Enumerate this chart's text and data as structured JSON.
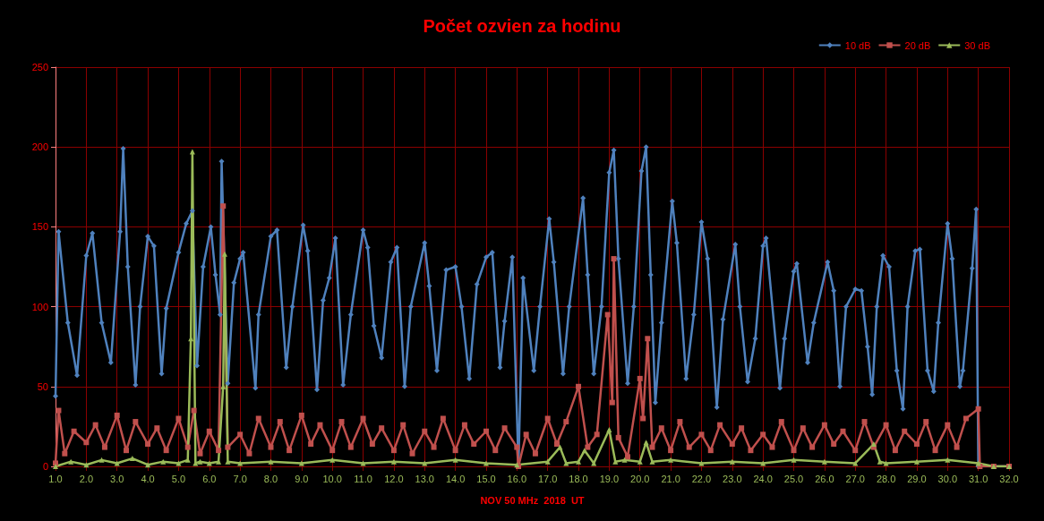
{
  "chart_data": {
    "type": "line",
    "title": "Počet ozvien za hodinu",
    "xlabel": "NOV 50 MHz  2018  UT",
    "xlim": [
      1,
      32
    ],
    "xticks": [
      {
        "value": 1,
        "label": "1.0"
      },
      {
        "value": 2,
        "label": "2.0"
      },
      {
        "value": 3,
        "label": "3.0"
      },
      {
        "value": 4,
        "label": "4.0"
      },
      {
        "value": 5,
        "label": "5.0"
      },
      {
        "value": 6,
        "label": "6.0"
      },
      {
        "value": 7,
        "label": "7.0"
      },
      {
        "value": 8,
        "label": "8.0"
      },
      {
        "value": 9,
        "label": "9.0"
      },
      {
        "value": 10,
        "label": "10.0"
      },
      {
        "value": 11,
        "label": "11.0"
      },
      {
        "value": 12,
        "label": "12.0"
      },
      {
        "value": 13,
        "label": "13.0"
      },
      {
        "value": 14,
        "label": "14.0"
      },
      {
        "value": 15,
        "label": "15.0"
      },
      {
        "value": 16,
        "label": "16.0"
      },
      {
        "value": 17,
        "label": "17.0"
      },
      {
        "value": 18,
        "label": "18.0"
      },
      {
        "value": 19,
        "label": "19.0"
      },
      {
        "value": 20,
        "label": "20.0"
      },
      {
        "value": 21,
        "label": "21.0"
      },
      {
        "value": 22,
        "label": "22.0"
      },
      {
        "value": 23,
        "label": "23.0"
      },
      {
        "value": 24,
        "label": "24.0"
      },
      {
        "value": 25,
        "label": "25.0"
      },
      {
        "value": 26,
        "label": "26.0"
      },
      {
        "value": 27,
        "label": "27.0"
      },
      {
        "value": 28,
        "label": "28.0"
      },
      {
        "value": 29,
        "label": "29.0"
      },
      {
        "value": 30,
        "label": "30.0"
      },
      {
        "value": 31,
        "label": "31.0"
      },
      {
        "value": 32,
        "label": "32.0"
      }
    ],
    "ylim": [
      0,
      250
    ],
    "yticks": [
      0,
      50,
      100,
      150,
      200,
      250
    ],
    "grid": true,
    "legend": "top right",
    "line_style": "solid",
    "series": [
      {
        "name": "10 dB",
        "color": "#4f81bd",
        "marker": "diamond",
        "x": [
          1.0,
          1.1,
          1.4,
          1.7,
          2.0,
          2.2,
          2.5,
          2.8,
          3.1,
          3.2,
          3.35,
          3.6,
          3.75,
          4.0,
          4.2,
          4.45,
          4.6,
          5.0,
          5.25,
          5.45,
          5.6,
          5.8,
          6.05,
          6.2,
          6.35,
          6.4,
          6.6,
          6.8,
          7.0,
          7.1,
          7.5,
          7.6,
          8.0,
          8.2,
          8.5,
          8.7,
          9.05,
          9.2,
          9.5,
          9.7,
          9.9,
          10.1,
          10.35,
          10.6,
          11.0,
          11.15,
          11.35,
          11.6,
          11.9,
          12.1,
          12.35,
          12.55,
          13.0,
          13.15,
          13.4,
          13.7,
          14.0,
          14.2,
          14.45,
          14.7,
          15.0,
          15.2,
          15.45,
          15.6,
          15.85,
          16.05,
          16.2,
          16.55,
          16.75,
          17.05,
          17.2,
          17.5,
          17.7,
          18.15,
          18.3,
          18.5,
          18.75,
          19.0,
          19.15,
          19.3,
          19.6,
          19.8,
          20.05,
          20.2,
          20.35,
          20.5,
          20.7,
          21.05,
          21.2,
          21.5,
          21.75,
          22.0,
          22.2,
          22.5,
          22.7,
          23.1,
          23.25,
          23.5,
          23.75,
          24.0,
          24.1,
          24.55,
          24.7,
          25.0,
          25.1,
          25.45,
          25.65,
          26.1,
          26.3,
          26.5,
          26.7,
          27.0,
          27.2,
          27.4,
          27.55,
          27.7,
          27.9,
          28.1,
          28.35,
          28.55,
          28.7,
          28.95,
          29.1,
          29.35,
          29.55,
          29.7,
          30.0,
          30.15,
          30.4,
          30.5,
          30.8,
          30.93,
          31.0,
          31.5,
          32.0
        ],
        "values": [
          44,
          147,
          90,
          57,
          132,
          146,
          90,
          65,
          147,
          199,
          125,
          51,
          100,
          144,
          138,
          58,
          99,
          134,
          152,
          160,
          63,
          125,
          150,
          120,
          95,
          191,
          52,
          115,
          130,
          134,
          49,
          95,
          144,
          148,
          62,
          100,
          151,
          135,
          48,
          104,
          118,
          143,
          51,
          95,
          148,
          137,
          88,
          68,
          128,
          137,
          50,
          100,
          140,
          113,
          60,
          123,
          125,
          100,
          55,
          114,
          131,
          134,
          62,
          91,
          131,
          0,
          118,
          60,
          100,
          155,
          128,
          58,
          100,
          168,
          120,
          58,
          100,
          184,
          198,
          130,
          52,
          100,
          185,
          200,
          120,
          40,
          90,
          166,
          140,
          55,
          95,
          153,
          130,
          37,
          92,
          139,
          100,
          53,
          80,
          138,
          143,
          49,
          80,
          122,
          127,
          65,
          90,
          128,
          110,
          50,
          100,
          111,
          110,
          75,
          45,
          100,
          132,
          125,
          60,
          36,
          100,
          135,
          136,
          60,
          47,
          90,
          152,
          130,
          50,
          60,
          124,
          161,
          0,
          0,
          0
        ]
      },
      {
        "name": "20 dB",
        "color": "#c0504d",
        "marker": "square",
        "x": [
          1.0,
          1.1,
          1.3,
          1.6,
          2.0,
          2.3,
          2.6,
          3.0,
          3.3,
          3.6,
          4.0,
          4.3,
          4.6,
          5.0,
          5.3,
          5.5,
          5.7,
          6.0,
          6.3,
          6.45,
          6.6,
          7.0,
          7.3,
          7.6,
          8.0,
          8.3,
          8.6,
          9.0,
          9.3,
          9.6,
          10.0,
          10.3,
          10.6,
          11.0,
          11.3,
          11.6,
          12.0,
          12.3,
          12.6,
          13.0,
          13.3,
          13.6,
          14.0,
          14.3,
          14.6,
          15.0,
          15.3,
          15.6,
          16.0,
          16.05,
          16.3,
          16.6,
          17.0,
          17.3,
          17.6,
          18.0,
          18.3,
          18.6,
          18.95,
          19.1,
          19.15,
          19.3,
          19.6,
          20.0,
          20.1,
          20.25,
          20.4,
          20.7,
          21.0,
          21.3,
          21.6,
          22.0,
          22.3,
          22.6,
          23.0,
          23.3,
          23.6,
          24.0,
          24.3,
          24.6,
          25.0,
          25.3,
          25.6,
          26.0,
          26.3,
          26.6,
          27.0,
          27.3,
          27.6,
          28.0,
          28.3,
          28.6,
          29.0,
          29.3,
          29.6,
          30.0,
          30.3,
          30.6,
          31.0,
          31.05,
          31.5,
          32.0
        ],
        "values": [
          2,
          35,
          8,
          22,
          15,
          26,
          12,
          32,
          10,
          28,
          14,
          24,
          10,
          30,
          12,
          35,
          8,
          22,
          10,
          163,
          12,
          20,
          8,
          30,
          12,
          28,
          10,
          32,
          14,
          26,
          10,
          28,
          12,
          30,
          14,
          24,
          10,
          26,
          8,
          22,
          12,
          30,
          10,
          26,
          14,
          22,
          10,
          24,
          12,
          0,
          20,
          8,
          30,
          14,
          28,
          50,
          12,
          20,
          95,
          40,
          130,
          18,
          6,
          55,
          30,
          80,
          12,
          24,
          10,
          28,
          12,
          20,
          10,
          26,
          14,
          24,
          10,
          20,
          12,
          28,
          10,
          24,
          12,
          26,
          14,
          22,
          10,
          28,
          12,
          26,
          10,
          22,
          14,
          28,
          10,
          26,
          12,
          30,
          36,
          0,
          0,
          0
        ]
      },
      {
        "name": "30 dB",
        "color": "#9bbb59",
        "marker": "triangle",
        "x": [
          1.0,
          1.5,
          2.0,
          2.5,
          3.0,
          3.5,
          4.0,
          4.5,
          5.0,
          5.3,
          5.4,
          5.45,
          5.55,
          5.7,
          6.0,
          6.3,
          6.45,
          6.5,
          6.6,
          7.0,
          8.0,
          9.0,
          10.0,
          11.0,
          12.0,
          13.0,
          14.0,
          15.0,
          16.0,
          17.0,
          17.4,
          17.6,
          18.0,
          18.2,
          18.5,
          19.0,
          19.2,
          19.5,
          20.0,
          20.2,
          20.4,
          21.0,
          22.0,
          23.0,
          24.0,
          25.0,
          26.0,
          27.0,
          27.6,
          27.8,
          28.0,
          29.0,
          30.0,
          31.0,
          31.5,
          32.0
        ],
        "values": [
          0,
          3,
          1,
          4,
          2,
          5,
          1,
          3,
          2,
          4,
          80,
          197,
          2,
          3,
          2,
          3,
          50,
          133,
          3,
          2,
          3,
          2,
          4,
          2,
          3,
          2,
          4,
          2,
          1,
          3,
          12,
          2,
          3,
          10,
          2,
          23,
          3,
          4,
          3,
          15,
          3,
          4,
          2,
          3,
          2,
          4,
          3,
          2,
          14,
          3,
          2,
          3,
          4,
          2,
          0,
          0
        ]
      }
    ]
  }
}
